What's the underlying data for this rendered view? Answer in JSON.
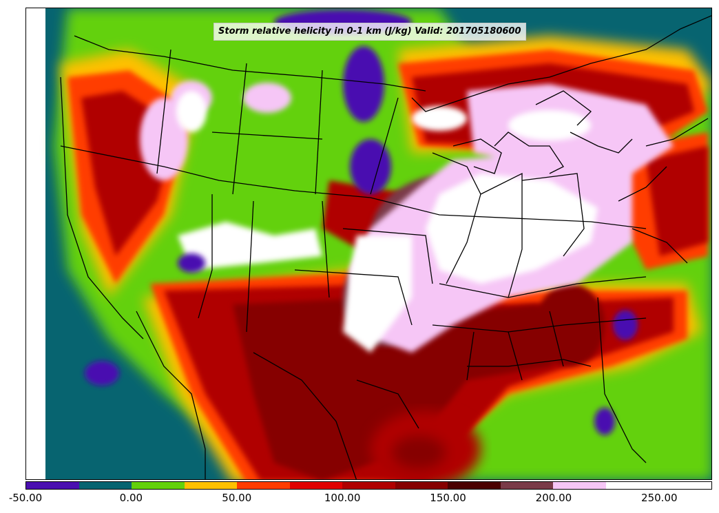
{
  "title": "Storm relative helicity in 0-1 km (J/kg) Valid: 201705180600",
  "colorbar": {
    "min": -50,
    "max": 275,
    "step": 25,
    "colors": [
      "#4a0fb0",
      "#076470",
      "#63d10b",
      "#ffc000",
      "#ff3c00",
      "#e00000",
      "#b00000",
      "#860000",
      "#4a0000",
      "#7a3a48",
      "#f6c6f6",
      "#ffffff",
      "#ffffff"
    ],
    "tick_labels": [
      "-50.00",
      "0.00",
      "50.00",
      "100.00",
      "150.00",
      "200.00",
      "250.00"
    ],
    "tick_values": [
      -50,
      0,
      50,
      100,
      150,
      200,
      250
    ]
  }
}
